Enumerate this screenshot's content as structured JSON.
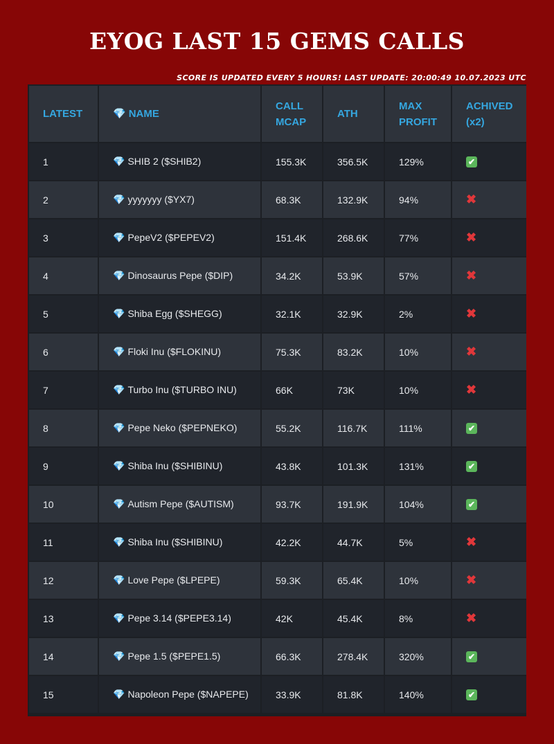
{
  "page": {
    "title": "EYOG LAST 15 GEMS CALLS",
    "update_note": "SCORE IS UPDATED EVERY 5 HOURS! LAST UPDATE: 20:00:49 10.07.2023 UTC"
  },
  "table": {
    "headers": {
      "latest": "LATEST",
      "name_icon": "💎",
      "name": "NAME",
      "call_mcap": "CALL MCAP",
      "ath": "ATH",
      "max_profit": "MAX PROFIT",
      "achived": "ACHIVED",
      "achived_sub": "(x2)"
    },
    "gem_icon": "💎",
    "status_icons": {
      "yes": "✔",
      "no": "✖"
    },
    "rows": [
      {
        "latest": "1",
        "name": "SHIB 2 ($SHIB2)",
        "call_mcap": "155.3K",
        "ath": "356.5K",
        "max_profit": "129%",
        "achived": "yes"
      },
      {
        "latest": "2",
        "name": "yyyyyyy ($YX7)",
        "call_mcap": "68.3K",
        "ath": "132.9K",
        "max_profit": "94%",
        "achived": "no"
      },
      {
        "latest": "3",
        "name": "PepeV2 ($PEPEV2)",
        "call_mcap": "151.4K",
        "ath": "268.6K",
        "max_profit": "77%",
        "achived": "no"
      },
      {
        "latest": "4",
        "name": "Dinosaurus Pepe ($DIP)",
        "call_mcap": "34.2K",
        "ath": "53.9K",
        "max_profit": "57%",
        "achived": "no"
      },
      {
        "latest": "5",
        "name": "Shiba Egg ($SHEGG)",
        "call_mcap": "32.1K",
        "ath": "32.9K",
        "max_profit": "2%",
        "achived": "no"
      },
      {
        "latest": "6",
        "name": "Floki Inu ($FLOKINU)",
        "call_mcap": "75.3K",
        "ath": "83.2K",
        "max_profit": "10%",
        "achived": "no"
      },
      {
        "latest": "7",
        "name": "Turbo Inu ($TURBO INU)",
        "call_mcap": "66K",
        "ath": "73K",
        "max_profit": "10%",
        "achived": "no"
      },
      {
        "latest": "8",
        "name": "Pepe Neko ($PEPNEKO)",
        "call_mcap": "55.2K",
        "ath": "116.7K",
        "max_profit": "111%",
        "achived": "yes"
      },
      {
        "latest": "9",
        "name": "Shiba Inu ($SHIBINU)",
        "call_mcap": "43.8K",
        "ath": "101.3K",
        "max_profit": "131%",
        "achived": "yes"
      },
      {
        "latest": "10",
        "name": "Autism Pepe ($AUTISM)",
        "call_mcap": "93.7K",
        "ath": "191.9K",
        "max_profit": "104%",
        "achived": "yes"
      },
      {
        "latest": "11",
        "name": "Shiba Inu ($SHIBINU)",
        "call_mcap": "42.2K",
        "ath": "44.7K",
        "max_profit": "5%",
        "achived": "no"
      },
      {
        "latest": "12",
        "name": "Love Pepe ($LPEPE)",
        "call_mcap": "59.3K",
        "ath": "65.4K",
        "max_profit": "10%",
        "achived": "no"
      },
      {
        "latest": "13",
        "name": "Pepe 3.14 ($PEPE3.14)",
        "call_mcap": "42K",
        "ath": "45.4K",
        "max_profit": "8%",
        "achived": "no"
      },
      {
        "latest": "14",
        "name": "Pepe 1.5 ($PEPE1.5)",
        "call_mcap": "66.3K",
        "ath": "278.4K",
        "max_profit": "320%",
        "achived": "yes"
      },
      {
        "latest": "15",
        "name": "Napoleon Pepe ($NAPEPE)",
        "call_mcap": "33.9K",
        "ath": "81.8K",
        "max_profit": "140%",
        "achived": "yes"
      }
    ]
  },
  "colors": {
    "background": "#870606",
    "table_dark": "#20242b",
    "table_light": "#2e333b",
    "header_text": "#35a7e0",
    "check_green": "#5bb65b",
    "cross_red": "#e0373a"
  }
}
